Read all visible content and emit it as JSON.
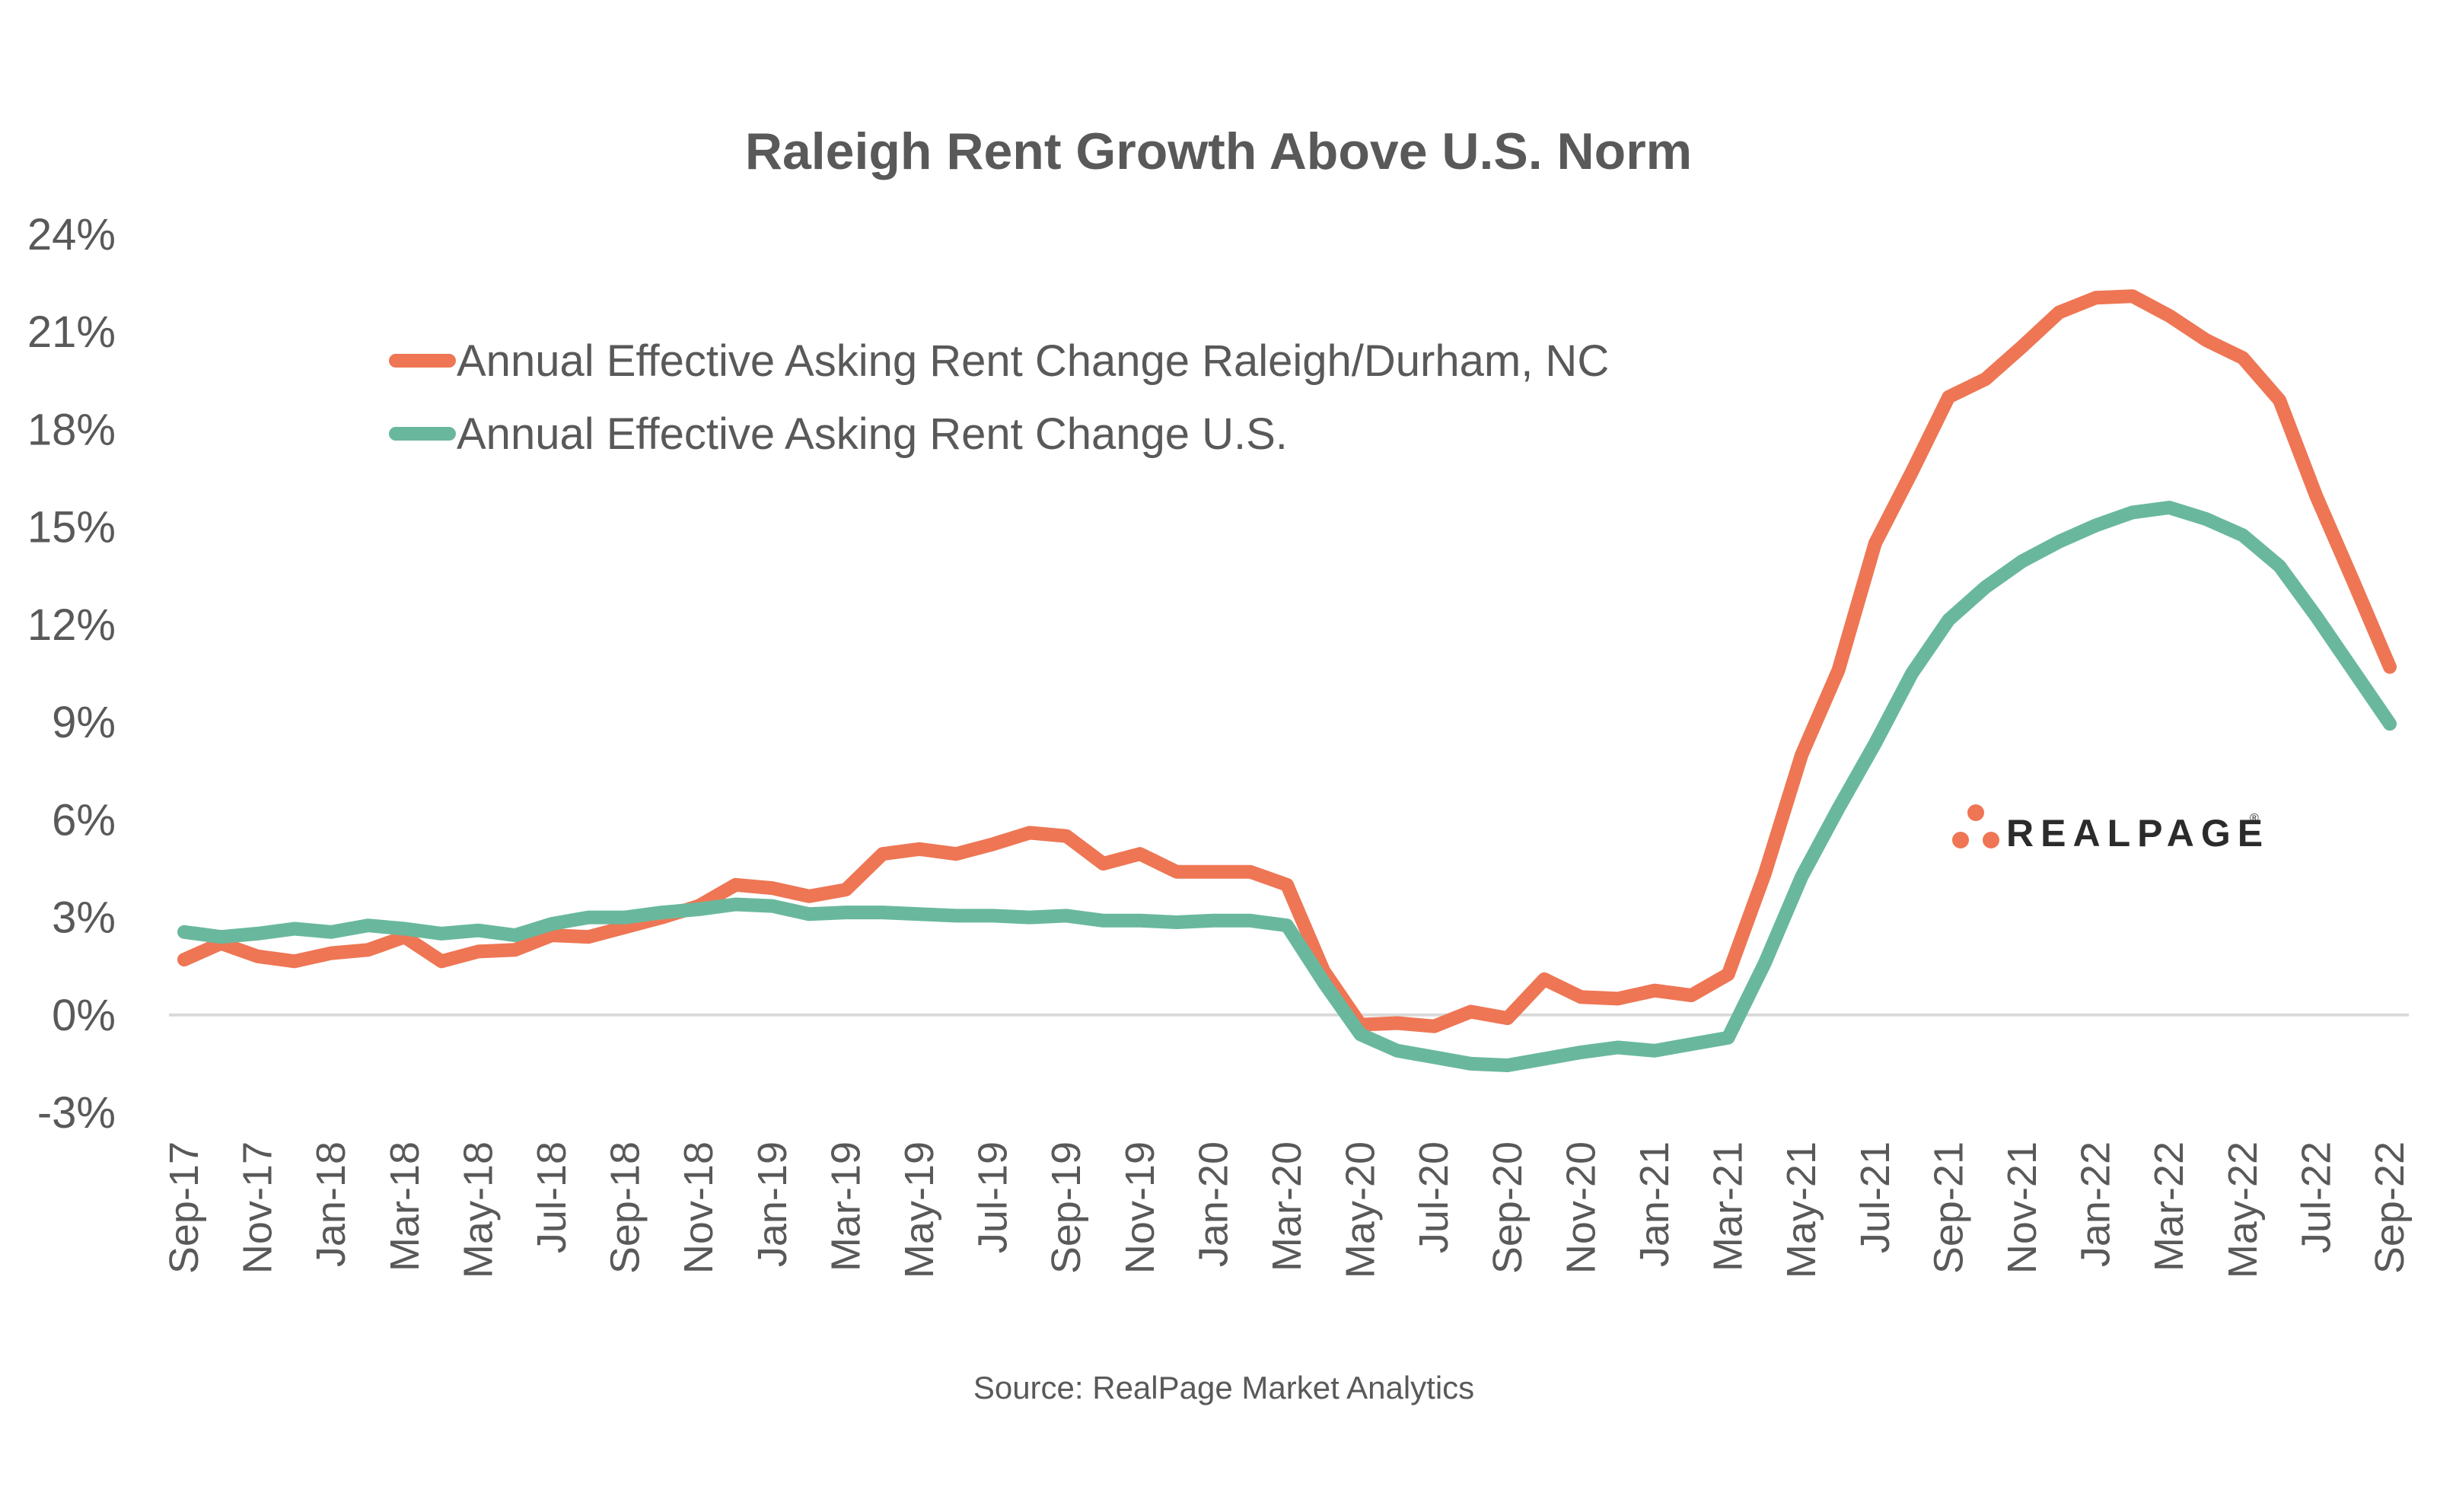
{
  "chart_data": {
    "type": "line",
    "title": "Raleigh Rent Growth Above U.S. Norm",
    "xlabel": "",
    "ylabel": "",
    "ylim": [
      -3,
      24
    ],
    "yticks": [
      -3,
      0,
      3,
      6,
      9,
      12,
      15,
      18,
      21,
      24
    ],
    "ytick_labels": [
      "-3%",
      "0%",
      "3%",
      "6%",
      "9%",
      "12%",
      "15%",
      "18%",
      "21%",
      "24%"
    ],
    "grid": "zero-line only",
    "legend_position": "top-left",
    "x": [
      "Sep-17",
      "Oct-17",
      "Nov-17",
      "Dec-17",
      "Jan-18",
      "Feb-18",
      "Mar-18",
      "Apr-18",
      "May-18",
      "Jun-18",
      "Jul-18",
      "Aug-18",
      "Sep-18",
      "Oct-18",
      "Nov-18",
      "Dec-18",
      "Jan-19",
      "Feb-19",
      "Mar-19",
      "Apr-19",
      "May-19",
      "Jun-19",
      "Jul-19",
      "Aug-19",
      "Sep-19",
      "Oct-19",
      "Nov-19",
      "Dec-19",
      "Jan-20",
      "Feb-20",
      "Mar-20",
      "Apr-20",
      "May-20",
      "Jun-20",
      "Jul-20",
      "Aug-20",
      "Sep-20",
      "Oct-20",
      "Nov-20",
      "Dec-20",
      "Jan-21",
      "Feb-21",
      "Mar-21",
      "Apr-21",
      "May-21",
      "Jun-21",
      "Jul-21",
      "Aug-21",
      "Sep-21",
      "Oct-21",
      "Nov-21",
      "Dec-21",
      "Jan-22",
      "Feb-22",
      "Mar-22",
      "Apr-22",
      "May-22",
      "Jun-22",
      "Jul-22",
      "Aug-22",
      "Sep-22"
    ],
    "xtick_labels": [
      "Sep-17",
      "Nov-17",
      "Jan-18",
      "Mar-18",
      "May-18",
      "Jul-18",
      "Sep-18",
      "Nov-18",
      "Jan-19",
      "Mar-19",
      "May-19",
      "Jul-19",
      "Sep-19",
      "Nov-19",
      "Jan-20",
      "Mar-20",
      "May-20",
      "Jul-20",
      "Sep-20",
      "Nov-20",
      "Jan-21",
      "Mar-21",
      "May-21",
      "Jul-21",
      "Sep-21",
      "Nov-21",
      "Jan-22",
      "Mar-22",
      "May-22",
      "Jul-22",
      "Sep-22"
    ],
    "series": [
      {
        "name": "Annual Effective Asking Rent Change Raleigh/Durham, NC",
        "color": "#EE7654",
        "values": [
          1.7,
          2.2,
          1.8,
          1.65,
          1.9,
          2.0,
          2.4,
          1.65,
          1.95,
          2.0,
          2.45,
          2.4,
          2.7,
          3.0,
          3.35,
          4.0,
          3.9,
          3.65,
          3.85,
          4.95,
          5.1,
          4.95,
          5.25,
          5.6,
          5.5,
          4.65,
          4.95,
          4.4,
          4.4,
          4.4,
          4.0,
          1.35,
          -0.3,
          -0.25,
          -0.35,
          0.1,
          -0.1,
          1.1,
          0.55,
          0.5,
          0.75,
          0.6,
          1.25,
          4.35,
          8.0,
          10.6,
          14.5,
          16.7,
          19.0,
          19.55,
          20.55,
          21.6,
          22.05,
          22.1,
          21.5,
          20.75,
          20.2,
          18.9,
          15.95,
          13.35,
          10.7
        ]
      },
      {
        "name": "Annual Effective Asking Rent Change U.S.",
        "color": "#69B89E",
        "values": [
          2.55,
          2.4,
          2.5,
          2.65,
          2.55,
          2.75,
          2.65,
          2.5,
          2.6,
          2.45,
          2.8,
          3.0,
          3.0,
          3.15,
          3.25,
          3.4,
          3.35,
          3.1,
          3.15,
          3.15,
          3.1,
          3.05,
          3.05,
          3.0,
          3.05,
          2.9,
          2.9,
          2.85,
          2.9,
          2.9,
          2.75,
          1.0,
          -0.6,
          -1.1,
          -1.3,
          -1.5,
          -1.55,
          -1.35,
          -1.15,
          -1.0,
          -1.1,
          -0.9,
          -0.7,
          1.6,
          4.25,
          6.35,
          8.35,
          10.5,
          12.15,
          13.15,
          13.95,
          14.55,
          15.05,
          15.45,
          15.6,
          15.25,
          14.75,
          13.8,
          12.25,
          10.6,
          8.95
        ]
      }
    ],
    "source": "Source: RealPage Market Analytics",
    "logo": {
      "text": "REALPAGE",
      "registered_mark": "®",
      "accent_color": "#EE7654"
    }
  }
}
